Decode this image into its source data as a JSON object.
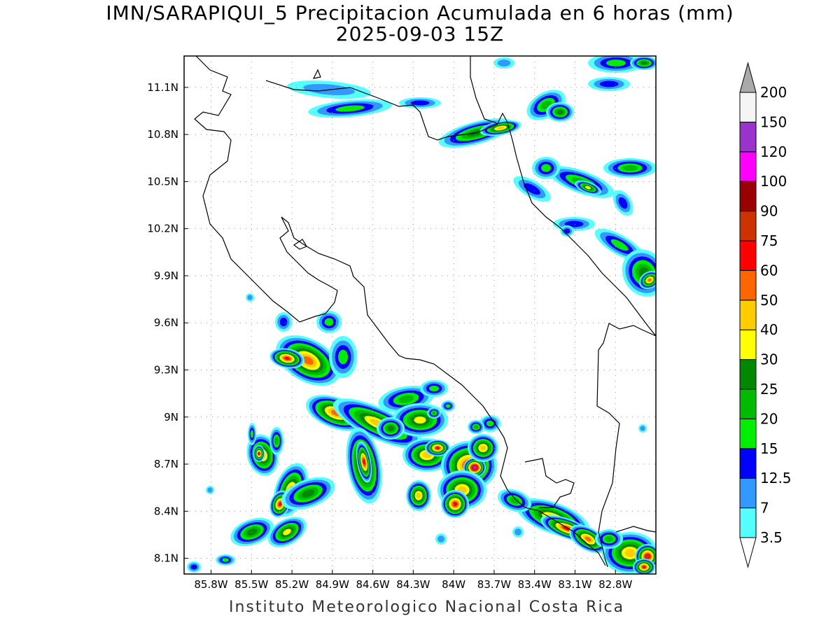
{
  "title_line1": "IMN/SARAPIQUI_5 Precipitacion Acumulada en 6 horas (mm)",
  "title_line2": "2025-09-03 15Z",
  "footer": "Instituto Meteorologico Nacional Costa Rica",
  "map": {
    "lon_range": [
      -86.0,
      -82.5
    ],
    "lat_range": [
      8.0,
      11.3
    ],
    "lat_ticks": [
      "11.1N",
      "10.8N",
      "10.5N",
      "10.2N",
      "9.9N",
      "9.6N",
      "9.3N",
      "9N",
      "8.7N",
      "8.4N",
      "8.1N"
    ],
    "lon_ticks": [
      "85.8W",
      "85.5W",
      "85.2W",
      "84.9W",
      "84.6W",
      "84.3W",
      "84W",
      "83.7W",
      "83.4W",
      "83.1W",
      "82.8W"
    ],
    "grid": true
  },
  "colorbar": {
    "labels": [
      "3.5",
      "7",
      "12.5",
      "15",
      "20",
      "25",
      "30",
      "40",
      "50",
      "60",
      "75",
      "90",
      "100",
      "120",
      "150",
      "200"
    ],
    "colors": [
      "#55ffff",
      "#3399ff",
      "#0000ff",
      "#00ee00",
      "#00bb00",
      "#008800",
      "#ffff00",
      "#ffcc00",
      "#ff6600",
      "#ff0000",
      "#cc3300",
      "#990000",
      "#ff00ff",
      "#9933cc",
      "#f5f5f5"
    ]
  }
}
